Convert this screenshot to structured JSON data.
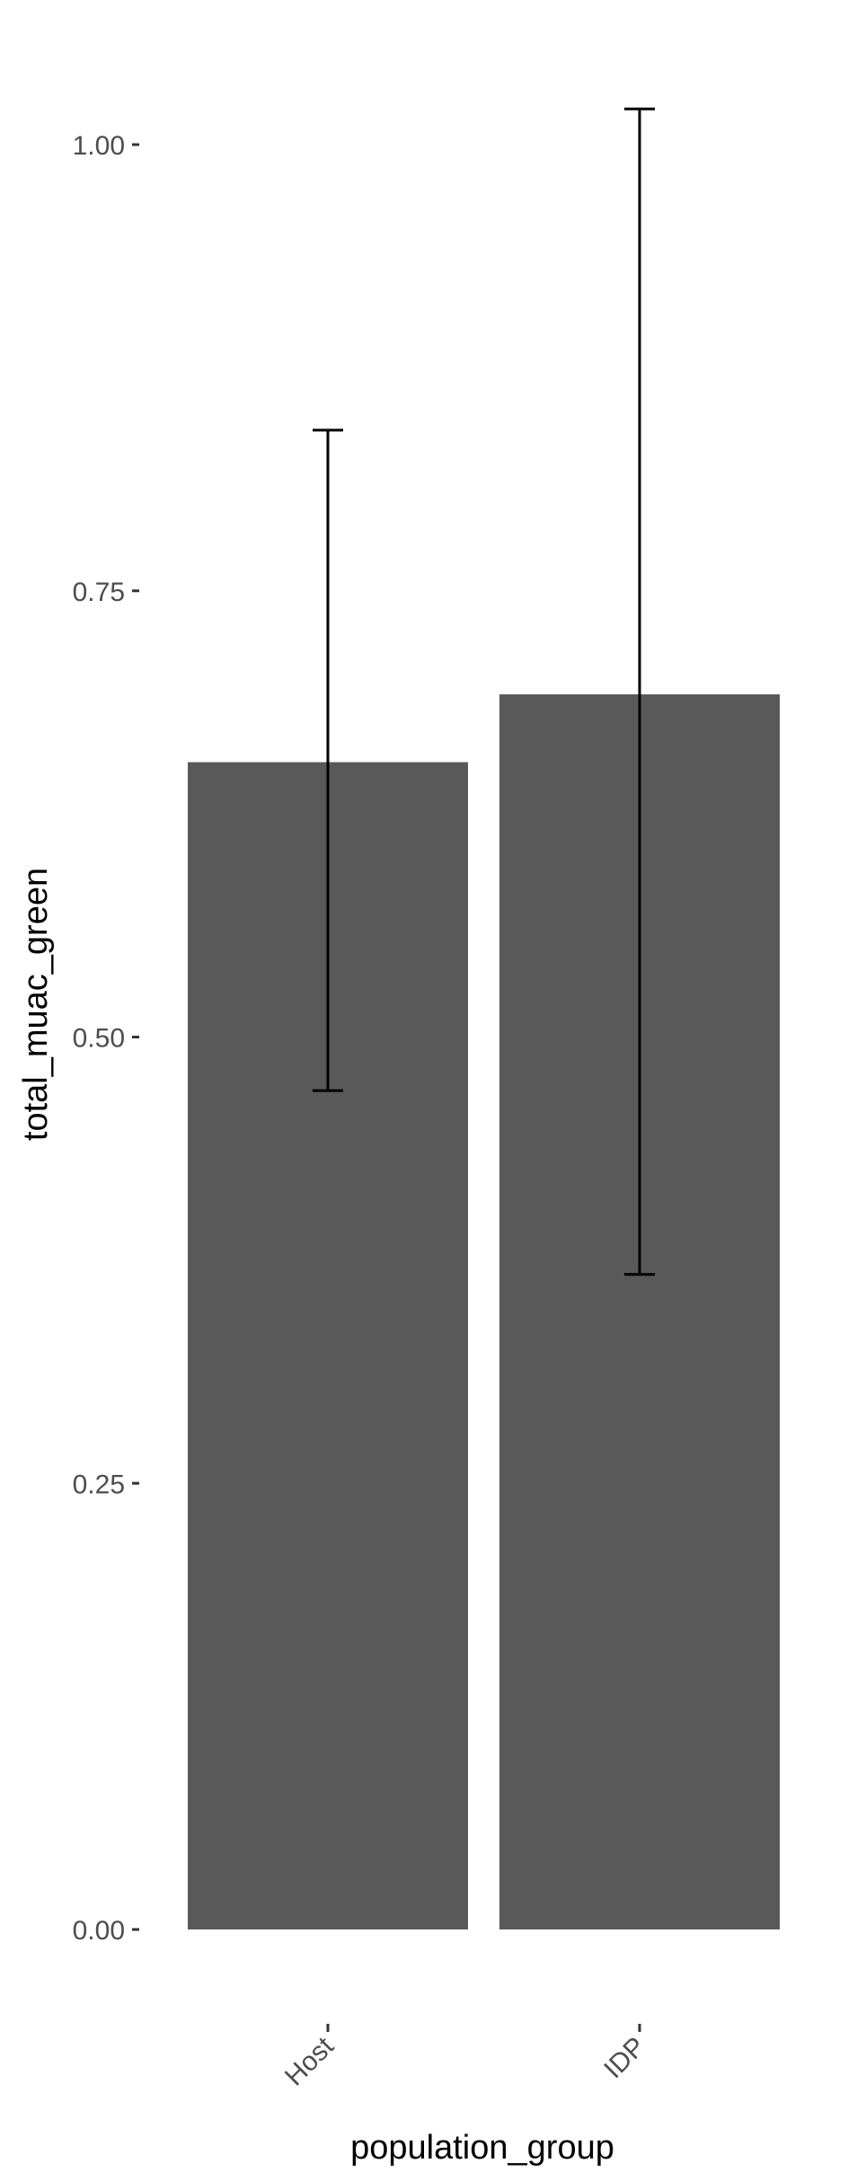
{
  "chart_data": {
    "type": "bar",
    "categories": [
      "Host",
      "IDP"
    ],
    "values": [
      0.654,
      0.692
    ],
    "error_bars": [
      {
        "low": 0.47,
        "high": 0.84
      },
      {
        "low": 0.367,
        "high": 1.02
      }
    ],
    "xlabel": "population_group",
    "ylabel": "total_muac_green",
    "ylim": [
      0,
      1.0
    ],
    "yticks": [
      "0.00",
      "0.25",
      "0.50",
      "0.75",
      "1.00"
    ],
    "ytick_values": [
      0,
      0.25,
      0.5,
      0.75,
      1.0
    ],
    "grid": false,
    "bar_color": "#595959",
    "errorbar_color": "#000000"
  }
}
